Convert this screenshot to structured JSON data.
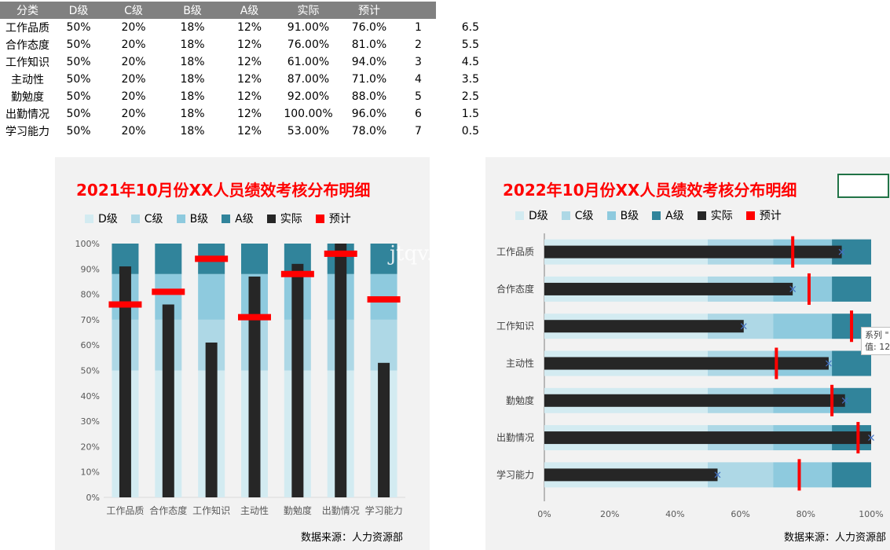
{
  "table": {
    "headers": [
      "分类",
      "D级",
      "C级",
      "B级",
      "A级",
      "实际",
      "预计",
      "",
      ""
    ],
    "rows": [
      [
        "工作品质",
        "50%",
        "20%",
        "18%",
        "12%",
        "91.00%",
        "76.0%",
        "1",
        "6.5"
      ],
      [
        "合作态度",
        "50%",
        "20%",
        "18%",
        "12%",
        "76.00%",
        "81.0%",
        "2",
        "5.5"
      ],
      [
        "工作知识",
        "50%",
        "20%",
        "18%",
        "12%",
        "61.00%",
        "94.0%",
        "3",
        "4.5"
      ],
      [
        "主动性",
        "50%",
        "20%",
        "18%",
        "12%",
        "87.00%",
        "71.0%",
        "4",
        "3.5"
      ],
      [
        "勤勉度",
        "50%",
        "20%",
        "18%",
        "12%",
        "92.00%",
        "88.0%",
        "5",
        "2.5"
      ],
      [
        "出勤情况",
        "50%",
        "20%",
        "18%",
        "12%",
        "100.00%",
        "96.0%",
        "6",
        "1.5"
      ],
      [
        "学习能力",
        "50%",
        "20%",
        "18%",
        "12%",
        "53.00%",
        "78.0%",
        "7",
        "0.5"
      ]
    ]
  },
  "colors": {
    "D": "#d3ebf1",
    "C": "#aed8e6",
    "B": "#8ecade",
    "A": "#31849b",
    "actual": "#262626",
    "target": "#ff0000",
    "marker": "#4472c4",
    "title": "#ff0000"
  },
  "chart_data": [
    {
      "type": "bar",
      "orientation": "vertical",
      "title": "2021年10月份XX人员绩效考核分布明细",
      "categories": [
        "工作品质",
        "合作态度",
        "工作知识",
        "主动性",
        "勤勉度",
        "出勤情况",
        "学习能力"
      ],
      "series": [
        {
          "name": "D级",
          "values": [
            50,
            50,
            50,
            50,
            50,
            50,
            50
          ]
        },
        {
          "name": "C级",
          "values": [
            20,
            20,
            20,
            20,
            20,
            20,
            20
          ]
        },
        {
          "name": "B级",
          "values": [
            18,
            18,
            18,
            18,
            18,
            18,
            18
          ]
        },
        {
          "name": "A级",
          "values": [
            12,
            12,
            12,
            12,
            12,
            12,
            12
          ]
        },
        {
          "name": "实际",
          "values": [
            91,
            76,
            61,
            87,
            92,
            100,
            53
          ]
        },
        {
          "name": "预计",
          "values": [
            76,
            81,
            94,
            71,
            88,
            96,
            78
          ]
        }
      ],
      "ylim": [
        0,
        100
      ],
      "yticks": [
        "0%",
        "10%",
        "20%",
        "30%",
        "40%",
        "50%",
        "60%",
        "70%",
        "80%",
        "90%",
        "100%"
      ],
      "legend": "top",
      "source": "数据来源：人力资源部"
    },
    {
      "type": "bar",
      "orientation": "horizontal",
      "title": "2022年10月份XX人员绩效考核分布明细",
      "categories": [
        "工作品质",
        "合作态度",
        "工作知识",
        "主动性",
        "勤勉度",
        "出勤情况",
        "学习能力"
      ],
      "series": [
        {
          "name": "D级",
          "values": [
            50,
            50,
            50,
            50,
            50,
            50,
            50
          ]
        },
        {
          "name": "C级",
          "values": [
            20,
            20,
            20,
            20,
            20,
            20,
            20
          ]
        },
        {
          "name": "B级",
          "values": [
            18,
            18,
            18,
            18,
            18,
            18,
            18
          ]
        },
        {
          "name": "A级",
          "values": [
            12,
            12,
            12,
            12,
            12,
            12,
            12
          ]
        },
        {
          "name": "实际",
          "values": [
            91,
            76,
            61,
            87,
            92,
            100,
            53
          ]
        },
        {
          "name": "预计",
          "values": [
            76,
            81,
            94,
            71,
            88,
            96,
            78
          ]
        }
      ],
      "xlim": [
        0,
        100
      ],
      "xticks": [
        "0%",
        "20%",
        "40%",
        "60%",
        "80%",
        "100%"
      ],
      "legend": "top",
      "source": "数据来源：人力资源部"
    }
  ],
  "legend_labels": [
    "D级",
    "C级",
    "B级",
    "A级",
    "实际",
    "预计"
  ],
  "watermark": "jtqv.com",
  "tooltip": {
    "line1": "系列 \"",
    "line2": "值: 12"
  }
}
